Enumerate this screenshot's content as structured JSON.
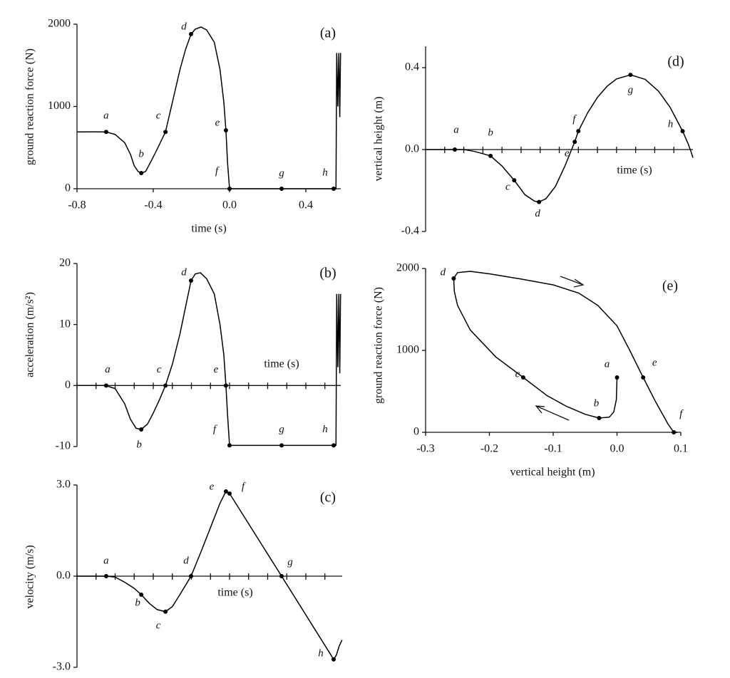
{
  "chart_data": [
    {
      "type": "line",
      "panel_label": "(a)",
      "x_label": "time (s)",
      "y_label": "ground reaction force (N)",
      "xlim": [
        -0.8,
        0.6
      ],
      "ylim": [
        0,
        2000
      ],
      "xticks": [
        -0.8,
        -0.4,
        {
          "value": 0,
          "label": "0.0"
        },
        0.4
      ],
      "yticks": [
        0,
        1000,
        2000
      ],
      "x": [
        -0.8,
        -0.7,
        -0.647,
        -0.6,
        -0.55,
        -0.52,
        -0.5,
        -0.48,
        -0.463,
        -0.44,
        -0.41,
        -0.38,
        -0.336,
        -0.3,
        -0.26,
        -0.23,
        -0.202,
        -0.18,
        -0.15,
        -0.12,
        -0.08,
        -0.05,
        -0.03,
        -0.019,
        -0.01,
        0,
        0.273,
        0.546,
        0.558,
        0.562,
        0.568,
        0.573,
        0.578,
        0.582
      ],
      "series": [
        {
          "color": "#000000",
          "values": [
            690,
            692,
            690,
            660,
            560,
            420,
            280,
            210,
            190,
            210,
            340,
            480,
            690,
            1050,
            1450,
            1700,
            1880,
            1940,
            1965,
            1930,
            1780,
            1450,
            1050,
            710,
            300,
            0,
            0,
            0,
            0,
            1650,
            1000,
            1650,
            870,
            1650
          ]
        }
      ],
      "points": {
        "labels": [
          "a",
          "b",
          "c",
          "d",
          "e",
          "f",
          "g",
          "h"
        ],
        "x": [
          -0.647,
          -0.463,
          -0.336,
          -0.202,
          -0.019,
          0,
          0.273,
          0.546
        ],
        "y": [
          690,
          190,
          690,
          1880,
          710,
          0,
          0,
          0
        ]
      }
    },
    {
      "type": "line",
      "panel_label": "(b)",
      "x_label": "time (s)",
      "y_label": "acceleration (m/s²)",
      "x_axis_at_zero": true,
      "xtick_labels": false,
      "xlim": [
        -0.8,
        0.6
      ],
      "ylim": [
        -10,
        20
      ],
      "xticks": [
        -0.8,
        -0.7,
        -0.6,
        -0.5,
        -0.4,
        -0.3,
        -0.2,
        -0.1,
        0,
        0.1,
        0.2,
        0.3,
        0.4,
        0.5
      ],
      "yticks": [
        -10,
        0,
        10,
        20
      ],
      "x": [
        -0.8,
        -0.65,
        -0.6,
        -0.55,
        -0.52,
        -0.49,
        -0.463,
        -0.43,
        -0.4,
        -0.37,
        -0.336,
        -0.3,
        -0.26,
        -0.23,
        -0.202,
        -0.18,
        -0.153,
        -0.12,
        -0.08,
        -0.05,
        -0.03,
        -0.019,
        -0.01,
        0,
        0.273,
        0.546,
        0.558,
        0.562,
        0.568,
        0.573,
        0.578,
        0.582
      ],
      "series": [
        {
          "color": "#000000",
          "values": [
            0,
            0,
            -0.5,
            -3,
            -5.5,
            -7,
            -7.2,
            -6.3,
            -4.5,
            -2.5,
            0,
            3.5,
            8.5,
            13,
            17.2,
            18.3,
            18.5,
            17.5,
            15,
            10,
            5,
            0,
            -5,
            -9.81,
            -9.81,
            -9.81,
            -9.81,
            15,
            3,
            15,
            2,
            15
          ]
        }
      ],
      "points": {
        "labels": [
          "a",
          "b",
          "c",
          "d",
          "e",
          "f",
          "g",
          "h"
        ],
        "x": [
          -0.647,
          -0.463,
          -0.336,
          -0.202,
          -0.019,
          0,
          0.273,
          0.546
        ],
        "y": [
          0,
          -7.2,
          0,
          17.2,
          0,
          -9.81,
          -9.81,
          -9.81
        ]
      }
    },
    {
      "type": "line",
      "panel_label": "(c)",
      "x_label": "time (s)",
      "y_label": "velocity (m/s)",
      "x_axis_at_zero": true,
      "xtick_labels": false,
      "xlim": [
        -0.8,
        0.6
      ],
      "ylim": [
        -3,
        3
      ],
      "xticks": [
        -0.8,
        -0.7,
        -0.6,
        -0.5,
        -0.4,
        -0.3,
        -0.2,
        -0.1,
        0,
        0.1,
        0.2,
        0.3,
        0.4,
        0.5
      ],
      "yticks": [
        {
          "value": -3,
          "label": "-3.0"
        },
        {
          "value": 0,
          "label": "0.0"
        },
        {
          "value": 3,
          "label": "3.0"
        }
      ],
      "x": [
        -0.8,
        -0.647,
        -0.6,
        -0.55,
        -0.5,
        -0.463,
        -0.42,
        -0.38,
        -0.336,
        -0.3,
        -0.26,
        -0.202,
        -0.15,
        -0.1,
        -0.05,
        -0.019,
        0,
        0.273,
        0.546,
        0.56,
        0.575,
        0.59
      ],
      "series": [
        {
          "color": "#000000",
          "values": [
            0,
            0,
            -0.03,
            -0.2,
            -0.4,
            -0.61,
            -0.9,
            -1.1,
            -1.17,
            -1.0,
            -0.6,
            0,
            0.8,
            1.6,
            2.4,
            2.79,
            2.72,
            0,
            -2.74,
            -2.6,
            -2.3,
            -2.1
          ]
        }
      ],
      "points": {
        "labels": [
          "a",
          "b",
          "c",
          "d",
          "e",
          "f",
          "g",
          "h"
        ],
        "x": [
          -0.647,
          -0.463,
          -0.336,
          -0.202,
          -0.019,
          0,
          0.273,
          0.546
        ],
        "y": [
          0,
          -0.61,
          -1.17,
          0,
          2.79,
          2.72,
          0,
          -2.74
        ]
      }
    },
    {
      "type": "line",
      "panel_label": "(d)",
      "x_label": "time (s)",
      "y_label": "vertical height (m)",
      "x_axis_at_zero": true,
      "xtick_labels": false,
      "xlim": [
        -0.8,
        0.6
      ],
      "ylim": [
        -0.4,
        0.4
      ],
      "xticks": [
        -0.7,
        -0.6,
        -0.5,
        -0.4,
        -0.3,
        -0.2,
        -0.1,
        0,
        0.1,
        0.2,
        0.3,
        0.4,
        0.5
      ],
      "yticks": [
        -0.4,
        {
          "value": 0,
          "label": "0.0"
        },
        0.4
      ],
      "x": [
        -0.8,
        -0.647,
        -0.6,
        -0.55,
        -0.5,
        -0.46,
        -0.4,
        -0.336,
        -0.28,
        -0.23,
        -0.206,
        -0.17,
        -0.12,
        -0.07,
        -0.019,
        0,
        0.05,
        0.1,
        0.15,
        0.2,
        0.273,
        0.35,
        0.42,
        0.48,
        0.546,
        0.575,
        0.59,
        0.6
      ],
      "series": [
        {
          "color": "#000000",
          "values": [
            0,
            0,
            0,
            -0.008,
            -0.02,
            -0.031,
            -0.08,
            -0.15,
            -0.22,
            -0.252,
            -0.256,
            -0.24,
            -0.18,
            -0.08,
            0.038,
            0.09,
            0.182,
            0.255,
            0.309,
            0.345,
            0.365,
            0.343,
            0.285,
            0.207,
            0.09,
            0.028,
            -0.01,
            -0.04
          ]
        }
      ],
      "points": {
        "labels": [
          "a",
          "b",
          "c",
          "d",
          "e",
          "f",
          "g",
          "h"
        ],
        "x": [
          -0.647,
          -0.46,
          -0.336,
          -0.206,
          -0.019,
          0,
          0.273,
          0.546
        ],
        "y": [
          0,
          -0.031,
          -0.15,
          -0.256,
          0.038,
          0.09,
          0.365,
          0.09
        ]
      }
    },
    {
      "type": "line",
      "panel_label": "(e)",
      "x_label": "vertical height (m)",
      "y_label": "ground reaction force (N)",
      "xlim": [
        -0.3,
        0.1
      ],
      "ylim": [
        0,
        2000
      ],
      "xticks": [
        -0.3,
        -0.2,
        -0.1,
        {
          "value": 0,
          "label": "0.0"
        },
        0.1
      ],
      "yticks": [
        0,
        1000,
        2000
      ],
      "x": [
        0,
        -0.001,
        -0.005,
        -0.012,
        -0.028,
        -0.05,
        -0.08,
        -0.11,
        -0.147,
        -0.19,
        -0.23,
        -0.25,
        -0.255,
        -0.256,
        -0.25,
        -0.23,
        -0.2,
        -0.15,
        -0.1,
        -0.06,
        -0.03,
        0,
        0.02,
        0.041,
        0.06,
        0.08,
        0.089,
        0.095
      ],
      "series": [
        {
          "color": "#000000",
          "values": [
            670,
            400,
            250,
            185,
            174,
            220,
            320,
            450,
            670,
            920,
            1250,
            1550,
            1720,
            1878,
            1950,
            1965,
            1935,
            1870,
            1800,
            1700,
            1550,
            1300,
            1000,
            670,
            380,
            100,
            0,
            0
          ]
        }
      ],
      "points": {
        "labels": [
          "a",
          "b",
          "c",
          "d",
          "e",
          "f"
        ],
        "x": [
          0,
          -0.028,
          -0.147,
          -0.256,
          0.041,
          0.089
        ],
        "y": [
          670,
          174,
          670,
          1878,
          670,
          0
        ]
      }
    }
  ]
}
